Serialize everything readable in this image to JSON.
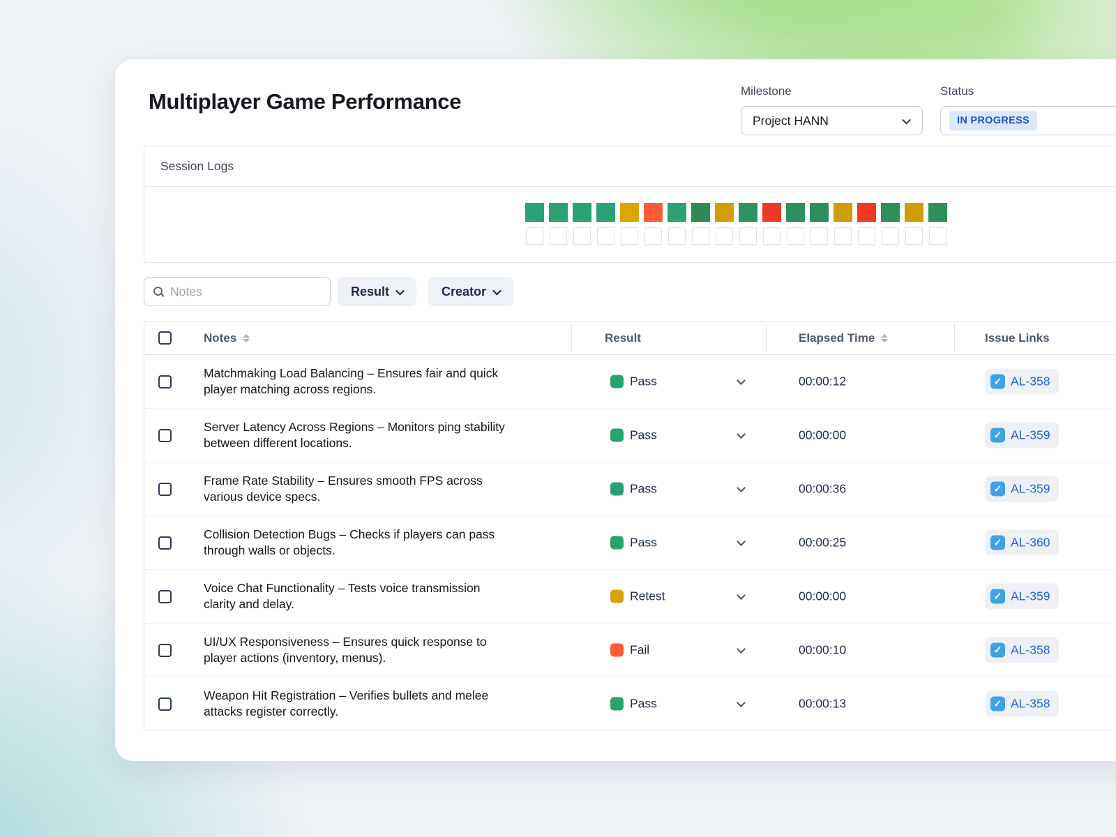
{
  "page_title": "Multiplayer Game Performance",
  "header": {
    "milestone_label": "Milestone",
    "milestone_value": "Project HANN",
    "status_label": "Status",
    "status_value": "IN PROGRESS",
    "status_badge_bg": "#dbe7fb",
    "status_badge_text": "#1b57d0"
  },
  "session_logs": {
    "title": "Session Logs",
    "result_squares": [
      "#2aa271",
      "#2aa271",
      "#2aa271",
      "#2aa271",
      "#d9a604",
      "#fa5c38",
      "#2aa271",
      "#2e8b57",
      "#d19e06",
      "#2f9361",
      "#ee3a25",
      "#2e8f5c",
      "#2e8f5c",
      "#cf9d07",
      "#ee3a25",
      "#2e8f5c",
      "#cf9d07",
      "#2e8f5c"
    ],
    "pending_squares": 18
  },
  "filters": {
    "search_placeholder": "Notes",
    "result_button": "Result",
    "creator_button": "Creator"
  },
  "table": {
    "columns": [
      "Notes",
      "Result",
      "Elapsed Time",
      "Issue Links"
    ],
    "status_colors": {
      "Pass": "#27a36f",
      "Retest": "#d5a40a",
      "Fail": "#fb5a35"
    },
    "rows": [
      {
        "notes": "Matchmaking Load Balancing – Ensures fair and quick\nplayer matching across regions.",
        "result": "Pass",
        "elapsed": "00:00:12",
        "issue": "AL-358"
      },
      {
        "notes": "Server Latency Across Regions – Monitors ping stability\nbetween different locations.",
        "result": "Pass",
        "elapsed": "00:00:00",
        "issue": "AL-359"
      },
      {
        "notes": "Frame Rate Stability – Ensures smooth FPS across\nvarious device specs.",
        "result": "Pass",
        "elapsed": "00:00:36",
        "issue": "AL-359"
      },
      {
        "notes": "Collision Detection Bugs – Checks if players can pass\nthrough walls or objects.",
        "result": "Pass",
        "elapsed": "00:00:25",
        "issue": "AL-360"
      },
      {
        "notes": "Voice Chat Functionality – Tests voice transmission\nclarity and delay.",
        "result": "Retest",
        "elapsed": "00:00:00",
        "issue": "AL-359"
      },
      {
        "notes": "UI/UX Responsiveness – Ensures quick response to\nplayer actions (inventory, menus).",
        "result": "Fail",
        "elapsed": "00:00:10",
        "issue": "AL-358"
      },
      {
        "notes": "Weapon Hit Registration – Verifies bullets and melee\nattacks register correctly.",
        "result": "Pass",
        "elapsed": "00:00:13",
        "issue": "AL-358"
      }
    ]
  },
  "icons": {
    "check": "✓"
  }
}
